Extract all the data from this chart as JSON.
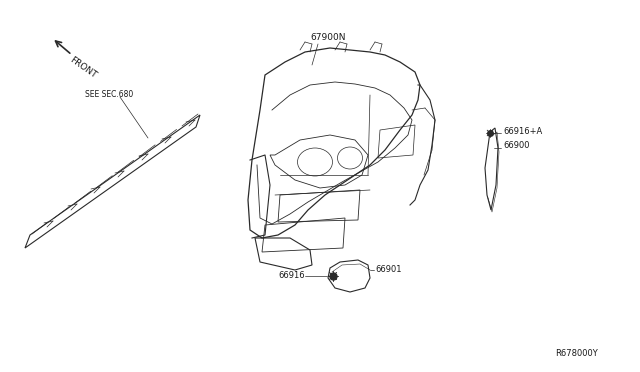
{
  "bg_color": "#ffffff",
  "line_color": "#2a2a2a",
  "text_color": "#1a1a1a",
  "fig_width": 6.4,
  "fig_height": 3.72,
  "dpi": 100,
  "labels": {
    "front_arrow_text": "FRONT",
    "see_sec": "SEE SEC.680",
    "part_67900N": "67900N",
    "part_66916A": "66916+A",
    "part_66900": "66900",
    "part_66916": "66916",
    "part_66901": "66901",
    "ref_code": "R678000Y"
  }
}
